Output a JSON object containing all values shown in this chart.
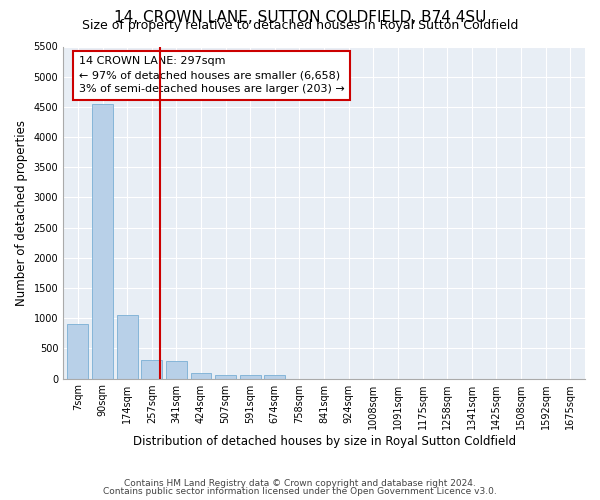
{
  "title_line1": "14, CROWN LANE, SUTTON COLDFIELD, B74 4SU",
  "title_line2": "Size of property relative to detached houses in Royal Sutton Coldfield",
  "xlabel": "Distribution of detached houses by size in Royal Sutton Coldfield",
  "ylabel": "Number of detached properties",
  "categories": [
    "7sqm",
    "90sqm",
    "174sqm",
    "257sqm",
    "341sqm",
    "424sqm",
    "507sqm",
    "591sqm",
    "674sqm",
    "758sqm",
    "841sqm",
    "924sqm",
    "1008sqm",
    "1091sqm",
    "1175sqm",
    "1258sqm",
    "1341sqm",
    "1425sqm",
    "1508sqm",
    "1592sqm",
    "1675sqm"
  ],
  "values": [
    900,
    4550,
    1060,
    310,
    290,
    95,
    60,
    55,
    55,
    0,
    0,
    0,
    0,
    0,
    0,
    0,
    0,
    0,
    0,
    0,
    0
  ],
  "bar_color": "#b8d0e8",
  "bar_edge_color": "#7aafd4",
  "vline_x": 3.35,
  "vline_color": "#cc0000",
  "annotation_text": "14 CROWN LANE: 297sqm\n← 97% of detached houses are smaller (6,658)\n3% of semi-detached houses are larger (203) →",
  "annotation_box_color": "#cc0000",
  "ylim": [
    0,
    5500
  ],
  "yticks": [
    0,
    500,
    1000,
    1500,
    2000,
    2500,
    3000,
    3500,
    4000,
    4500,
    5000,
    5500
  ],
  "footer_line1": "Contains HM Land Registry data © Crown copyright and database right 2024.",
  "footer_line2": "Contains public sector information licensed under the Open Government Licence v3.0.",
  "background_color": "#ffffff",
  "plot_bg_color": "#e8eef5",
  "grid_color": "#ffffff",
  "title_fontsize": 11,
  "subtitle_fontsize": 9,
  "tick_fontsize": 7,
  "ylabel_fontsize": 8.5,
  "xlabel_fontsize": 8.5
}
